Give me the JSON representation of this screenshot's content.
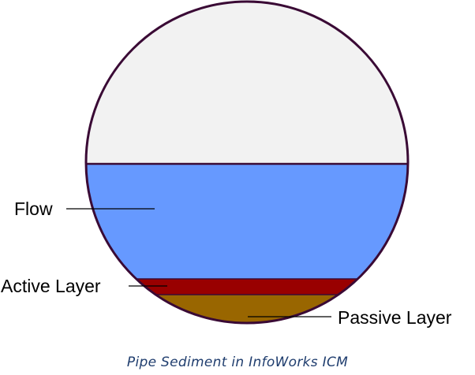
{
  "diagram": {
    "labels": {
      "flow": "Flow",
      "active_layer": "Active Layer",
      "passive_layer": "Passive Layer"
    },
    "caption": "Pipe Sediment in InfoWorks ICM"
  },
  "colors": {
    "pipe_outline": "#3a0a35",
    "empty_space": "#f2f2f2",
    "flow": "#6699ff",
    "active_layer": "#990000",
    "passive_layer": "#996600",
    "caption_text": "#1f3d6e"
  }
}
